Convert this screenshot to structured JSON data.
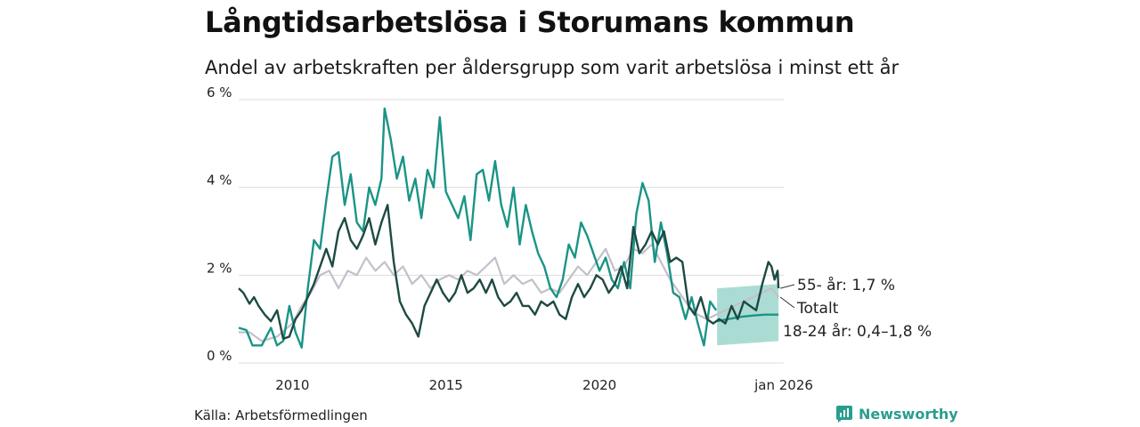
{
  "header": {
    "title": "Långtidsarbetslösa i Storumans kommun",
    "subtitle": "Andel av arbetskraften per åldersgrupp som varit arbetslösa i minst ett år"
  },
  "footer": {
    "source": "Källa: Arbetsförmedlingen",
    "brand": "Newsworthy"
  },
  "colors": {
    "youth": "#1a9486",
    "senior": "#1d4a43",
    "total": "#c4bfca",
    "band": "#8fd0c6",
    "grid": "#dddddd"
  },
  "chart_data": {
    "type": "line",
    "title": "Långtidsarbetslösa i Storumans kommun",
    "xlabel": "",
    "ylabel": "",
    "xlim": [
      2008.25,
      2026.0
    ],
    "ylim": [
      0,
      6
    ],
    "y_ticks": [
      0,
      2,
      4,
      6
    ],
    "y_tick_labels": [
      "0 %",
      "2 %",
      "4 %",
      "6 %"
    ],
    "x_ticks": [
      2010,
      2015,
      2020,
      2026.0
    ],
    "x_tick_labels": [
      "2010",
      "2015",
      "2020",
      "jan 2026"
    ],
    "grid": true,
    "series": [
      {
        "name": "Totalt",
        "label": "Totalt",
        "color_key": "total",
        "points": [
          [
            2008.25,
            0.7
          ],
          [
            2008.6,
            0.7
          ],
          [
            2009.0,
            0.5
          ],
          [
            2009.5,
            0.6
          ],
          [
            2010.0,
            0.9
          ],
          [
            2010.3,
            1.3
          ],
          [
            2010.6,
            1.6
          ],
          [
            2010.9,
            2.0
          ],
          [
            2011.2,
            2.1
          ],
          [
            2011.5,
            1.7
          ],
          [
            2011.8,
            2.1
          ],
          [
            2012.1,
            2.0
          ],
          [
            2012.4,
            2.4
          ],
          [
            2012.7,
            2.1
          ],
          [
            2013.0,
            2.3
          ],
          [
            2013.3,
            2.0
          ],
          [
            2013.6,
            2.2
          ],
          [
            2013.9,
            1.8
          ],
          [
            2014.2,
            2.0
          ],
          [
            2014.5,
            1.7
          ],
          [
            2014.8,
            1.9
          ],
          [
            2015.1,
            2.0
          ],
          [
            2015.4,
            1.9
          ],
          [
            2015.7,
            2.1
          ],
          [
            2016.0,
            2.0
          ],
          [
            2016.3,
            2.2
          ],
          [
            2016.6,
            2.4
          ],
          [
            2016.9,
            1.8
          ],
          [
            2017.2,
            2.0
          ],
          [
            2017.5,
            1.8
          ],
          [
            2017.8,
            1.9
          ],
          [
            2018.1,
            1.6
          ],
          [
            2018.4,
            1.7
          ],
          [
            2018.7,
            1.6
          ],
          [
            2019.0,
            1.9
          ],
          [
            2019.3,
            2.2
          ],
          [
            2019.6,
            2.0
          ],
          [
            2019.9,
            2.3
          ],
          [
            2020.2,
            2.6
          ],
          [
            2020.5,
            2.1
          ],
          [
            2020.8,
            2.2
          ],
          [
            2021.1,
            2.6
          ],
          [
            2021.4,
            2.5
          ],
          [
            2021.7,
            2.7
          ],
          [
            2022.0,
            2.3
          ],
          [
            2022.3,
            1.9
          ],
          [
            2022.6,
            1.6
          ],
          [
            2022.9,
            1.3
          ],
          [
            2023.2,
            1.1
          ],
          [
            2023.5,
            1.0
          ],
          [
            2023.8,
            1.1
          ],
          [
            2024.1,
            1.2
          ],
          [
            2024.4,
            1.3
          ],
          [
            2024.7,
            1.4
          ],
          [
            2025.0,
            1.5
          ],
          [
            2025.3,
            1.6
          ],
          [
            2025.6,
            1.7
          ],
          [
            2025.83,
            1.5
          ]
        ]
      },
      {
        "name": "18-24 år",
        "label": "18-24 år: 0,4–1,8 %",
        "color_key": "youth",
        "points": [
          [
            2008.25,
            0.8
          ],
          [
            2008.5,
            0.75
          ],
          [
            2008.7,
            0.4
          ],
          [
            2009.0,
            0.4
          ],
          [
            2009.3,
            0.8
          ],
          [
            2009.5,
            0.4
          ],
          [
            2009.7,
            0.5
          ],
          [
            2009.9,
            1.3
          ],
          [
            2010.1,
            0.7
          ],
          [
            2010.3,
            0.35
          ],
          [
            2010.5,
            1.7
          ],
          [
            2010.7,
            2.8
          ],
          [
            2010.9,
            2.6
          ],
          [
            2011.1,
            3.7
          ],
          [
            2011.3,
            4.7
          ],
          [
            2011.5,
            4.8
          ],
          [
            2011.7,
            3.6
          ],
          [
            2011.9,
            4.3
          ],
          [
            2012.1,
            3.2
          ],
          [
            2012.3,
            3.0
          ],
          [
            2012.5,
            4.0
          ],
          [
            2012.7,
            3.6
          ],
          [
            2012.9,
            4.2
          ],
          [
            2013.0,
            5.8
          ],
          [
            2013.2,
            5.1
          ],
          [
            2013.4,
            4.2
          ],
          [
            2013.6,
            4.7
          ],
          [
            2013.8,
            3.7
          ],
          [
            2014.0,
            4.2
          ],
          [
            2014.2,
            3.3
          ],
          [
            2014.4,
            4.4
          ],
          [
            2014.6,
            4.0
          ],
          [
            2014.8,
            5.6
          ],
          [
            2015.0,
            3.9
          ],
          [
            2015.2,
            3.6
          ],
          [
            2015.4,
            3.3
          ],
          [
            2015.6,
            3.8
          ],
          [
            2015.8,
            2.8
          ],
          [
            2016.0,
            4.3
          ],
          [
            2016.2,
            4.4
          ],
          [
            2016.4,
            3.7
          ],
          [
            2016.6,
            4.6
          ],
          [
            2016.8,
            3.6
          ],
          [
            2017.0,
            3.1
          ],
          [
            2017.2,
            4.0
          ],
          [
            2017.4,
            2.7
          ],
          [
            2017.6,
            3.6
          ],
          [
            2017.8,
            3.0
          ],
          [
            2018.0,
            2.5
          ],
          [
            2018.2,
            2.2
          ],
          [
            2018.4,
            1.7
          ],
          [
            2018.6,
            1.5
          ],
          [
            2018.8,
            1.9
          ],
          [
            2019.0,
            2.7
          ],
          [
            2019.2,
            2.4
          ],
          [
            2019.4,
            3.2
          ],
          [
            2019.6,
            2.9
          ],
          [
            2019.8,
            2.5
          ],
          [
            2020.0,
            2.1
          ],
          [
            2020.2,
            2.4
          ],
          [
            2020.4,
            1.9
          ],
          [
            2020.6,
            1.7
          ],
          [
            2020.8,
            2.3
          ],
          [
            2021.0,
            1.7
          ],
          [
            2021.2,
            3.4
          ],
          [
            2021.4,
            4.1
          ],
          [
            2021.6,
            3.7
          ],
          [
            2021.8,
            2.3
          ],
          [
            2022.0,
            3.2
          ],
          [
            2022.2,
            2.5
          ],
          [
            2022.4,
            1.6
          ],
          [
            2022.6,
            1.5
          ],
          [
            2022.8,
            1.0
          ],
          [
            2023.0,
            1.5
          ],
          [
            2023.2,
            0.9
          ],
          [
            2023.4,
            0.4
          ],
          [
            2023.6,
            1.4
          ],
          [
            2023.8,
            1.2
          ]
        ]
      },
      {
        "name": "18-24 år trend",
        "label": "",
        "color_key": "youth",
        "points": [
          [
            2023.83,
            0.95
          ],
          [
            2024.2,
            1.0
          ],
          [
            2024.6,
            1.05
          ],
          [
            2025.0,
            1.08
          ],
          [
            2025.4,
            1.1
          ],
          [
            2025.83,
            1.1
          ]
        ]
      },
      {
        "name": "55- år",
        "label": "55- år: 1,7 %",
        "color_key": "senior",
        "points": [
          [
            2008.25,
            1.7
          ],
          [
            2008.4,
            1.6
          ],
          [
            2008.6,
            1.35
          ],
          [
            2008.75,
            1.5
          ],
          [
            2008.9,
            1.3
          ],
          [
            2009.1,
            1.1
          ],
          [
            2009.3,
            0.95
          ],
          [
            2009.5,
            1.2
          ],
          [
            2009.7,
            0.55
          ],
          [
            2009.9,
            0.6
          ],
          [
            2010.1,
            1.0
          ],
          [
            2010.3,
            1.2
          ],
          [
            2010.5,
            1.5
          ],
          [
            2010.7,
            1.8
          ],
          [
            2010.9,
            2.2
          ],
          [
            2011.1,
            2.6
          ],
          [
            2011.3,
            2.2
          ],
          [
            2011.5,
            3.0
          ],
          [
            2011.7,
            3.3
          ],
          [
            2011.9,
            2.8
          ],
          [
            2012.1,
            2.6
          ],
          [
            2012.3,
            2.9
          ],
          [
            2012.5,
            3.3
          ],
          [
            2012.7,
            2.7
          ],
          [
            2012.9,
            3.2
          ],
          [
            2013.1,
            3.6
          ],
          [
            2013.3,
            2.3
          ],
          [
            2013.5,
            1.4
          ],
          [
            2013.7,
            1.1
          ],
          [
            2013.9,
            0.9
          ],
          [
            2014.1,
            0.6
          ],
          [
            2014.3,
            1.3
          ],
          [
            2014.5,
            1.6
          ],
          [
            2014.7,
            1.9
          ],
          [
            2014.9,
            1.6
          ],
          [
            2015.1,
            1.4
          ],
          [
            2015.3,
            1.6
          ],
          [
            2015.5,
            2.0
          ],
          [
            2015.7,
            1.6
          ],
          [
            2015.9,
            1.7
          ],
          [
            2016.1,
            1.9
          ],
          [
            2016.3,
            1.6
          ],
          [
            2016.5,
            1.9
          ],
          [
            2016.7,
            1.5
          ],
          [
            2016.9,
            1.3
          ],
          [
            2017.1,
            1.4
          ],
          [
            2017.3,
            1.6
          ],
          [
            2017.5,
            1.3
          ],
          [
            2017.7,
            1.3
          ],
          [
            2017.9,
            1.1
          ],
          [
            2018.1,
            1.4
          ],
          [
            2018.3,
            1.3
          ],
          [
            2018.5,
            1.4
          ],
          [
            2018.7,
            1.1
          ],
          [
            2018.9,
            1.0
          ],
          [
            2019.1,
            1.5
          ],
          [
            2019.3,
            1.8
          ],
          [
            2019.5,
            1.5
          ],
          [
            2019.7,
            1.7
          ],
          [
            2019.9,
            2.0
          ],
          [
            2020.1,
            1.9
          ],
          [
            2020.3,
            1.6
          ],
          [
            2020.5,
            1.8
          ],
          [
            2020.7,
            2.2
          ],
          [
            2020.9,
            1.7
          ],
          [
            2021.1,
            3.1
          ],
          [
            2021.3,
            2.5
          ],
          [
            2021.5,
            2.7
          ],
          [
            2021.7,
            3.0
          ],
          [
            2021.9,
            2.7
          ],
          [
            2022.1,
            3.0
          ],
          [
            2022.3,
            2.3
          ],
          [
            2022.5,
            2.4
          ],
          [
            2022.7,
            2.3
          ],
          [
            2022.9,
            1.3
          ],
          [
            2023.1,
            1.1
          ],
          [
            2023.3,
            1.5
          ],
          [
            2023.5,
            1.0
          ],
          [
            2023.7,
            0.9
          ],
          [
            2023.9,
            1.0
          ],
          [
            2024.1,
            0.9
          ],
          [
            2024.3,
            1.3
          ],
          [
            2024.5,
            1.0
          ],
          [
            2024.7,
            1.4
          ],
          [
            2024.9,
            1.3
          ],
          [
            2025.1,
            1.2
          ],
          [
            2025.3,
            1.8
          ],
          [
            2025.5,
            2.3
          ],
          [
            2025.6,
            2.2
          ],
          [
            2025.7,
            1.9
          ],
          [
            2025.8,
            2.1
          ],
          [
            2025.83,
            1.7
          ]
        ]
      }
    ],
    "band": {
      "name": "18-24 år intervall",
      "x": [
        2023.83,
        2025.83
      ],
      "lower": [
        0.4,
        0.5
      ],
      "upper": [
        1.7,
        1.8
      ]
    }
  }
}
